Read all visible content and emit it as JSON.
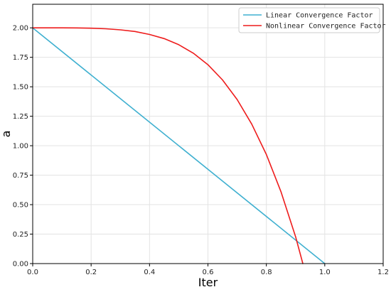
{
  "chart_data": {
    "type": "line",
    "xlabel": "Iter",
    "ylabel": "a",
    "xlim": [
      0.0,
      1.2
    ],
    "ylim": [
      0.0,
      2.2
    ],
    "x_ticks": [
      "0.0",
      "0.2",
      "0.4",
      "0.6",
      "0.8",
      "1.0",
      "1.2"
    ],
    "y_ticks": [
      "0.00",
      "0.25",
      "0.50",
      "0.75",
      "1.00",
      "1.25",
      "1.50",
      "1.75",
      "2.00"
    ],
    "grid": true,
    "legend_position": "top-right",
    "series": [
      {
        "name": "Linear Convergence Factor",
        "color": "#3fb0d0",
        "points": [
          [
            0.0,
            2.0
          ],
          [
            1.0,
            0.0
          ]
        ]
      },
      {
        "name": "Nonlinear Convergence Factor",
        "color": "#ee1c1c",
        "points": [
          [
            0.0,
            2.0
          ],
          [
            0.05,
            2.0
          ],
          [
            0.1,
            2.0
          ],
          [
            0.15,
            1.999
          ],
          [
            0.2,
            1.997
          ],
          [
            0.25,
            1.992
          ],
          [
            0.3,
            1.983
          ],
          [
            0.35,
            1.969
          ],
          [
            0.4,
            1.944
          ],
          [
            0.45,
            1.909
          ],
          [
            0.5,
            1.857
          ],
          [
            0.55,
            1.785
          ],
          [
            0.6,
            1.687
          ],
          [
            0.65,
            1.558
          ],
          [
            0.7,
            1.392
          ],
          [
            0.75,
            1.183
          ],
          [
            0.8,
            0.925
          ],
          [
            0.85,
            0.61
          ],
          [
            0.9,
            0.228
          ],
          [
            0.925,
            0.0
          ]
        ]
      }
    ]
  }
}
